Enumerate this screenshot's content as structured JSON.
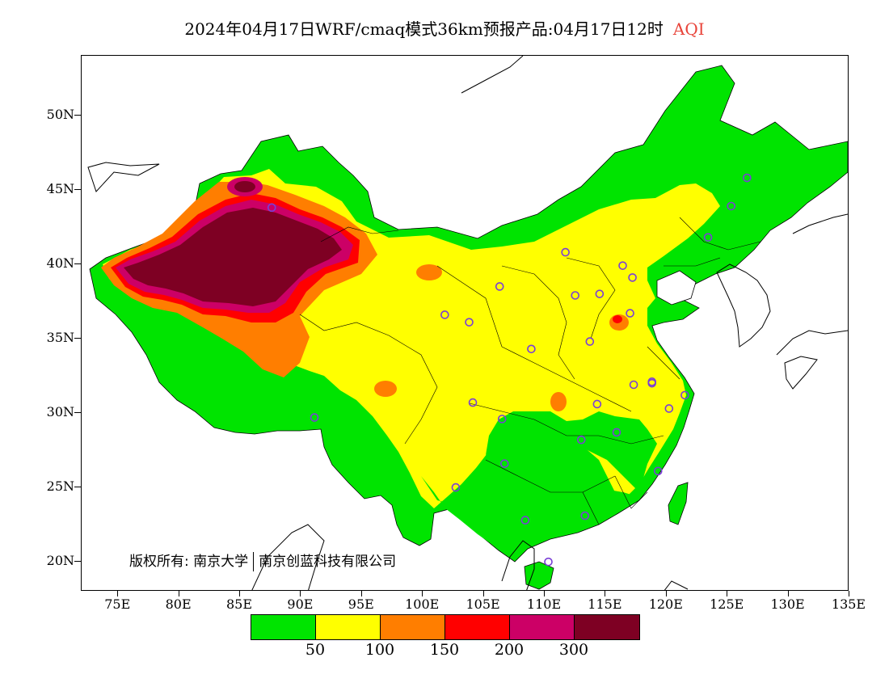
{
  "title": {
    "main": "2024年04月17日WRF/cmaq模式36km预报产品:04月17日12时",
    "variable": "AQI"
  },
  "map": {
    "lat_range": [
      18,
      54
    ],
    "lon_range": [
      72,
      135
    ],
    "lat_labels": [
      "20N",
      "25N",
      "30N",
      "35N",
      "40N",
      "45N",
      "50N"
    ],
    "lon_labels": [
      "75E",
      "80E",
      "85E",
      "90E",
      "95E",
      "100E",
      "105E",
      "110E",
      "115E",
      "120E",
      "125E",
      "130E",
      "135E"
    ],
    "copyright_label": "版权所有:",
    "copyright_org1": "南京大学",
    "copyright_org2": "南京创蓝科技有限公司",
    "marker_color": "#7a3fd6",
    "coast_color": "#000000"
  },
  "legend": {
    "colors": [
      "#00e400",
      "#ffff00",
      "#ff7e00",
      "#ff0000",
      "#cc0066",
      "#7e0023"
    ],
    "labels": [
      "50",
      "100",
      "150",
      "200",
      "300"
    ]
  },
  "stations": [
    {
      "lon": 87.6,
      "lat": 43.8
    },
    {
      "lon": 91.1,
      "lat": 29.7
    },
    {
      "lon": 101.8,
      "lat": 36.6
    },
    {
      "lon": 103.8,
      "lat": 36.1
    },
    {
      "lon": 106.3,
      "lat": 38.5
    },
    {
      "lon": 111.7,
      "lat": 40.8
    },
    {
      "lon": 116.4,
      "lat": 39.9
    },
    {
      "lon": 117.2,
      "lat": 39.1
    },
    {
      "lon": 114.5,
      "lat": 38.0
    },
    {
      "lon": 112.5,
      "lat": 37.9
    },
    {
      "lon": 108.9,
      "lat": 34.3
    },
    {
      "lon": 113.7,
      "lat": 34.8
    },
    {
      "lon": 117.0,
      "lat": 36.7
    },
    {
      "lon": 117.3,
      "lat": 31.9
    },
    {
      "lon": 118.8,
      "lat": 32.1
    },
    {
      "lon": 120.2,
      "lat": 30.3
    },
    {
      "lon": 121.5,
      "lat": 31.2
    },
    {
      "lon": 114.3,
      "lat": 30.6
    },
    {
      "lon": 113.0,
      "lat": 28.2
    },
    {
      "lon": 115.9,
      "lat": 28.7
    },
    {
      "lon": 119.3,
      "lat": 26.1
    },
    {
      "lon": 104.1,
      "lat": 30.7
    },
    {
      "lon": 106.5,
      "lat": 29.6
    },
    {
      "lon": 106.7,
      "lat": 26.6
    },
    {
      "lon": 102.7,
      "lat": 25.0
    },
    {
      "lon": 108.4,
      "lat": 22.8
    },
    {
      "lon": 113.3,
      "lat": 23.1
    },
    {
      "lon": 110.3,
      "lat": 20.0
    },
    {
      "lon": 123.4,
      "lat": 41.8
    },
    {
      "lon": 125.3,
      "lat": 43.9
    },
    {
      "lon": 126.6,
      "lat": 45.8
    },
    {
      "lon": 118.8,
      "lat": 32.0
    }
  ]
}
